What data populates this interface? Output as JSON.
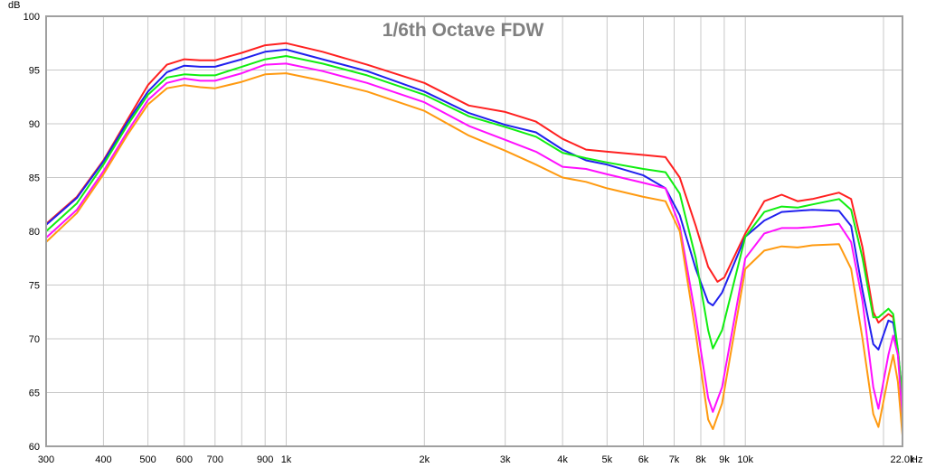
{
  "chart_data": {
    "type": "line",
    "title": "1/6th Octave FDW",
    "ylabel": "dB",
    "xunit": "Hz",
    "xscale": "log",
    "xlim": [
      300,
      22000
    ],
    "ylim": [
      60,
      100
    ],
    "grid": true,
    "legend": "none",
    "yticks": [
      {
        "value": 100,
        "label": "100"
      },
      {
        "value": 95,
        "label": "95"
      },
      {
        "value": 90,
        "label": "90"
      },
      {
        "value": 85,
        "label": "85"
      },
      {
        "value": 80,
        "label": "80"
      },
      {
        "value": 75,
        "label": "75"
      },
      {
        "value": 70,
        "label": "70"
      },
      {
        "value": 65,
        "label": "65"
      },
      {
        "value": 60,
        "label": "60"
      }
    ],
    "xticks": [
      {
        "value": 300,
        "label": "300"
      },
      {
        "value": 400,
        "label": "400"
      },
      {
        "value": 500,
        "label": "500"
      },
      {
        "value": 600,
        "label": "600"
      },
      {
        "value": 700,
        "label": "700"
      },
      {
        "value": 900,
        "label": "900"
      },
      {
        "value": 1000,
        "label": "1k"
      },
      {
        "value": 2000,
        "label": "2k"
      },
      {
        "value": 3000,
        "label": "3k"
      },
      {
        "value": 4000,
        "label": "4k"
      },
      {
        "value": 5000,
        "label": "5k"
      },
      {
        "value": 6000,
        "label": "6k"
      },
      {
        "value": 7000,
        "label": "7k"
      },
      {
        "value": 8000,
        "label": "8k"
      },
      {
        "value": 9000,
        "label": "9k"
      },
      {
        "value": 10000,
        "label": "10k"
      },
      {
        "value": 22000,
        "label": "22.0k"
      }
    ],
    "gridlines_x": [
      300,
      400,
      500,
      600,
      700,
      800,
      900,
      1000,
      2000,
      3000,
      4000,
      5000,
      6000,
      7000,
      8000,
      9000,
      10000,
      20000
    ],
    "series": [
      {
        "color": "#ff2020",
        "points": [
          [
            300,
            80.7
          ],
          [
            350,
            83.2
          ],
          [
            400,
            86.6
          ],
          [
            450,
            90.3
          ],
          [
            500,
            93.6
          ],
          [
            550,
            95.5
          ],
          [
            600,
            96.0
          ],
          [
            650,
            95.9
          ],
          [
            700,
            95.9
          ],
          [
            800,
            96.6
          ],
          [
            900,
            97.3
          ],
          [
            1000,
            97.5
          ],
          [
            1200,
            96.7
          ],
          [
            1500,
            95.5
          ],
          [
            2000,
            93.8
          ],
          [
            2500,
            91.7
          ],
          [
            3000,
            91.1
          ],
          [
            3500,
            90.2
          ],
          [
            4000,
            88.6
          ],
          [
            4500,
            87.6
          ],
          [
            5000,
            87.4
          ],
          [
            6000,
            87.1
          ],
          [
            6700,
            86.9
          ],
          [
            7200,
            85.0
          ],
          [
            7800,
            80.5
          ],
          [
            8300,
            76.7
          ],
          [
            8700,
            75.3
          ],
          [
            9000,
            75.7
          ],
          [
            10000,
            79.8
          ],
          [
            11000,
            82.8
          ],
          [
            12000,
            83.4
          ],
          [
            13000,
            82.8
          ],
          [
            14000,
            83.0
          ],
          [
            16000,
            83.6
          ],
          [
            17000,
            83.0
          ],
          [
            18000,
            78.5
          ],
          [
            19000,
            72.5
          ],
          [
            19500,
            71.5
          ],
          [
            20500,
            72.3
          ],
          [
            21000,
            72.0
          ],
          [
            21500,
            68.5
          ],
          [
            22000,
            64.5
          ]
        ]
      },
      {
        "color": "#2020ee",
        "points": [
          [
            300,
            80.6
          ],
          [
            350,
            83.1
          ],
          [
            400,
            86.5
          ],
          [
            450,
            90.1
          ],
          [
            500,
            93.0
          ],
          [
            550,
            94.8
          ],
          [
            600,
            95.4
          ],
          [
            650,
            95.3
          ],
          [
            700,
            95.3
          ],
          [
            800,
            96.0
          ],
          [
            900,
            96.7
          ],
          [
            1000,
            96.9
          ],
          [
            1200,
            96.0
          ],
          [
            1500,
            94.9
          ],
          [
            2000,
            93.0
          ],
          [
            2500,
            91.0
          ],
          [
            3000,
            89.9
          ],
          [
            3500,
            89.2
          ],
          [
            4000,
            87.6
          ],
          [
            4500,
            86.6
          ],
          [
            5000,
            86.2
          ],
          [
            6000,
            85.2
          ],
          [
            6700,
            84.0
          ],
          [
            7200,
            81.5
          ],
          [
            7800,
            76.5
          ],
          [
            8300,
            73.4
          ],
          [
            8500,
            73.1
          ],
          [
            8900,
            74.3
          ],
          [
            10000,
            79.5
          ],
          [
            11000,
            81.0
          ],
          [
            12000,
            81.8
          ],
          [
            14000,
            82.0
          ],
          [
            16000,
            81.9
          ],
          [
            17000,
            80.5
          ],
          [
            18000,
            74.5
          ],
          [
            19000,
            69.5
          ],
          [
            19500,
            69.0
          ],
          [
            20500,
            71.7
          ],
          [
            21000,
            71.5
          ],
          [
            21500,
            69.0
          ],
          [
            22000,
            64.5
          ]
        ]
      },
      {
        "color": "#10ee10",
        "points": [
          [
            300,
            80.0
          ],
          [
            350,
            82.6
          ],
          [
            400,
            86.2
          ],
          [
            450,
            89.8
          ],
          [
            500,
            92.7
          ],
          [
            550,
            94.3
          ],
          [
            600,
            94.6
          ],
          [
            650,
            94.5
          ],
          [
            700,
            94.5
          ],
          [
            800,
            95.3
          ],
          [
            900,
            96.0
          ],
          [
            1000,
            96.3
          ],
          [
            1200,
            95.6
          ],
          [
            1500,
            94.5
          ],
          [
            2000,
            92.7
          ],
          [
            2500,
            90.7
          ],
          [
            3000,
            89.7
          ],
          [
            3500,
            88.8
          ],
          [
            4000,
            87.3
          ],
          [
            4500,
            86.8
          ],
          [
            5000,
            86.4
          ],
          [
            6000,
            85.8
          ],
          [
            6700,
            85.5
          ],
          [
            7200,
            83.5
          ],
          [
            7800,
            77.5
          ],
          [
            8300,
            70.8
          ],
          [
            8500,
            69.1
          ],
          [
            8900,
            70.8
          ],
          [
            10000,
            79.5
          ],
          [
            11000,
            81.8
          ],
          [
            12000,
            82.3
          ],
          [
            13000,
            82.2
          ],
          [
            14000,
            82.5
          ],
          [
            16000,
            83.0
          ],
          [
            17000,
            82.0
          ],
          [
            18000,
            77.5
          ],
          [
            19000,
            72.0
          ],
          [
            19500,
            72.0
          ],
          [
            20500,
            72.8
          ],
          [
            21000,
            72.3
          ],
          [
            21500,
            69.0
          ],
          [
            22000,
            64.5
          ]
        ]
      },
      {
        "color": "#ff10ff",
        "points": [
          [
            300,
            79.4
          ],
          [
            350,
            82.0
          ],
          [
            400,
            85.6
          ],
          [
            450,
            89.2
          ],
          [
            500,
            92.2
          ],
          [
            550,
            93.8
          ],
          [
            600,
            94.2
          ],
          [
            650,
            94.0
          ],
          [
            700,
            94.0
          ],
          [
            800,
            94.7
          ],
          [
            900,
            95.5
          ],
          [
            1000,
            95.6
          ],
          [
            1200,
            94.9
          ],
          [
            1500,
            93.8
          ],
          [
            2000,
            92.0
          ],
          [
            2500,
            89.8
          ],
          [
            3000,
            88.5
          ],
          [
            3500,
            87.4
          ],
          [
            4000,
            86.0
          ],
          [
            4500,
            85.8
          ],
          [
            5000,
            85.3
          ],
          [
            6000,
            84.5
          ],
          [
            6700,
            84.0
          ],
          [
            7200,
            80.5
          ],
          [
            7800,
            72.0
          ],
          [
            8300,
            64.5
          ],
          [
            8500,
            63.2
          ],
          [
            8900,
            65.5
          ],
          [
            10000,
            77.5
          ],
          [
            11000,
            79.8
          ],
          [
            12000,
            80.3
          ],
          [
            13000,
            80.3
          ],
          [
            14000,
            80.4
          ],
          [
            16000,
            80.7
          ],
          [
            17000,
            79.0
          ],
          [
            18000,
            73.5
          ],
          [
            19000,
            65.5
          ],
          [
            19500,
            63.5
          ],
          [
            20500,
            68.5
          ],
          [
            21000,
            70.3
          ],
          [
            21500,
            68.5
          ],
          [
            22000,
            62.5
          ]
        ]
      },
      {
        "color": "#ff9a10",
        "points": [
          [
            300,
            79.0
          ],
          [
            350,
            81.7
          ],
          [
            400,
            85.3
          ],
          [
            450,
            88.9
          ],
          [
            500,
            91.8
          ],
          [
            550,
            93.3
          ],
          [
            600,
            93.6
          ],
          [
            650,
            93.4
          ],
          [
            700,
            93.3
          ],
          [
            800,
            93.9
          ],
          [
            900,
            94.6
          ],
          [
            1000,
            94.7
          ],
          [
            1200,
            94.0
          ],
          [
            1500,
            93.0
          ],
          [
            2000,
            91.2
          ],
          [
            2500,
            88.9
          ],
          [
            3000,
            87.5
          ],
          [
            3500,
            86.2
          ],
          [
            4000,
            85.0
          ],
          [
            4500,
            84.6
          ],
          [
            5000,
            84.0
          ],
          [
            6000,
            83.2
          ],
          [
            6700,
            82.8
          ],
          [
            7200,
            80.0
          ],
          [
            7800,
            70.5
          ],
          [
            8300,
            62.5
          ],
          [
            8500,
            61.6
          ],
          [
            8900,
            64.0
          ],
          [
            10000,
            76.5
          ],
          [
            11000,
            78.2
          ],
          [
            12000,
            78.6
          ],
          [
            13000,
            78.5
          ],
          [
            14000,
            78.7
          ],
          [
            16000,
            78.8
          ],
          [
            17000,
            76.5
          ],
          [
            18000,
            70.0
          ],
          [
            19000,
            63.0
          ],
          [
            19500,
            61.8
          ],
          [
            20500,
            66.5
          ],
          [
            21000,
            68.5
          ],
          [
            21500,
            66.0
          ],
          [
            22000,
            61.0
          ]
        ]
      }
    ]
  }
}
